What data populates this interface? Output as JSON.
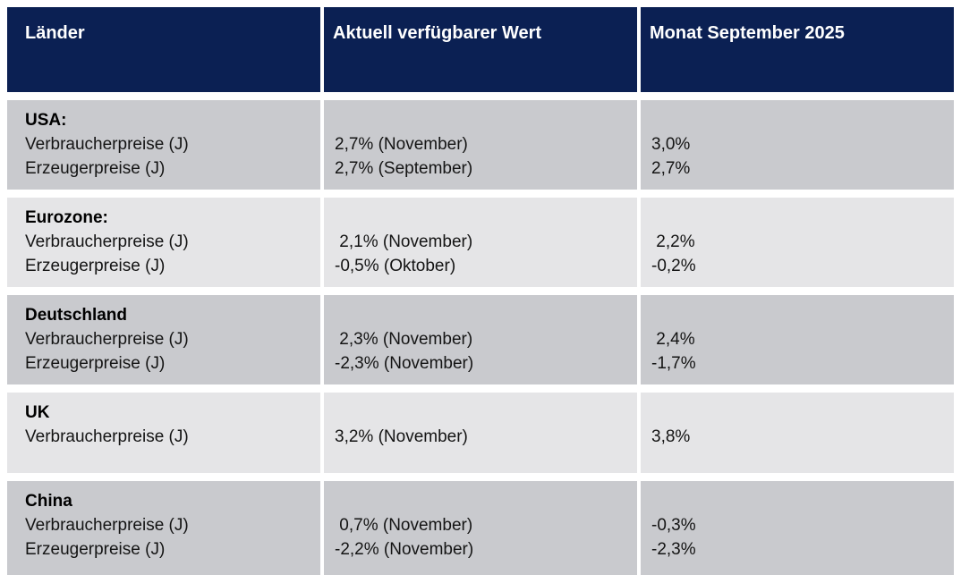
{
  "table": {
    "header": {
      "col1": "Länder",
      "col2": "Aktuell verfügbarer Wert",
      "col3": "Monat September 2025"
    },
    "rows": [
      {
        "country": "USA:",
        "metrics": "Verbraucherpreise (J)\nErzeugerpreise (J)",
        "current": "2,7% (November)\n2,7% (September)",
        "month": "3,0%\n2,7%"
      },
      {
        "country": "Eurozone:",
        "metrics": "Verbraucherpreise (J)\nErzeugerpreise (J)",
        "current": " 2,1% (November)\n-0,5% (Oktober)",
        "month": " 2,2%\n-0,2%"
      },
      {
        "country": "Deutschland",
        "metrics": "Verbraucherpreise (J)\nErzeugerpreise (J)",
        "current": " 2,3% (November)\n-2,3% (November)",
        "month": " 2,4%\n-1,7%"
      },
      {
        "country": "UK",
        "metrics": "Verbraucherpreise (J)",
        "current": "3,2% (November)",
        "month": "3,8%"
      },
      {
        "country": "China",
        "metrics": "Verbraucherpreise (J)\nErzeugerpreise (J)",
        "current": " 0,7% (November)\n-2,2% (November)",
        "month": "-0,3%\n-2,3%"
      }
    ],
    "colors": {
      "header_bg": "#0b2053",
      "header_text": "#ffffff",
      "row_dark": "#c9cace",
      "row_light": "#e5e5e7",
      "body_text": "#141414"
    }
  }
}
